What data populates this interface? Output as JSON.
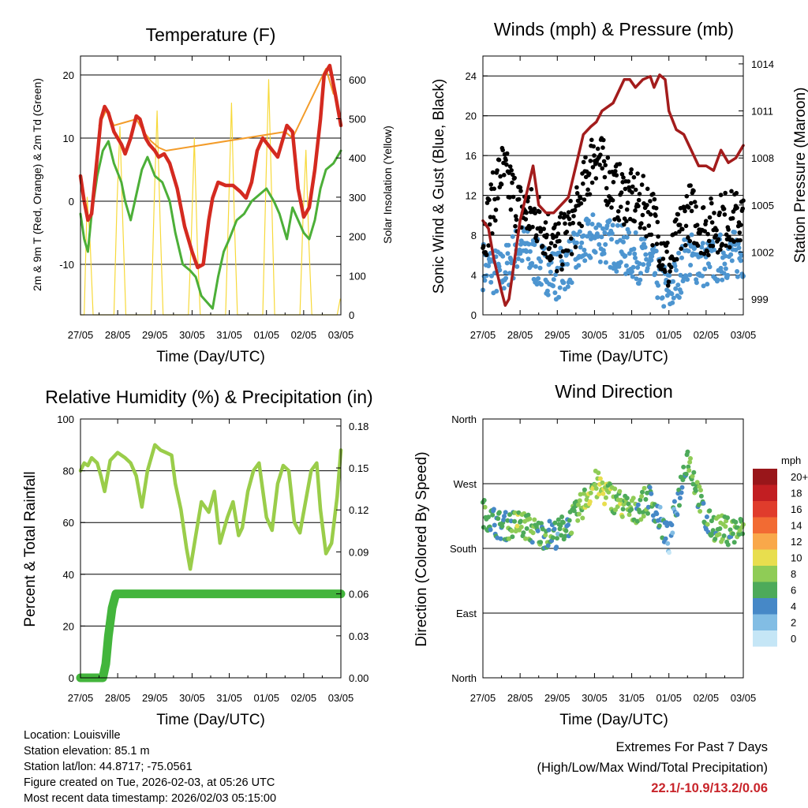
{
  "colors": {
    "temp_red": "#d42a20",
    "temp_orange": "#f39c2a",
    "dewpoint": "#4caf38",
    "insolation": "#f7d93a",
    "gust": "#000000",
    "wind": "#4d95d0",
    "pressure": "#a31c1c",
    "rh": "#9acd4a",
    "rain": "#43b53c",
    "extremes": "#c8242a"
  },
  "footer": {
    "location": "Location: Louisville",
    "elevation": "Station elevation: 85.1 m",
    "latlon": "Station lat/lon: 44.8717; -75.0561",
    "created": "Figure created on Tue, 2026-02-03, at 05:26 UTC",
    "timestamp": "Most recent data timestamp: 2026/02/03 05:15:00"
  },
  "extremes": {
    "title": "Extremes For Past 7 Days",
    "subtitle": "(High/Low/Max Wind/Total Precipitation)",
    "values": "22.1/-10.9/13.2/0.06"
  },
  "chart_data": [
    {
      "id": "temperature",
      "type": "line",
      "title": "Temperature (F)",
      "xlabel": "Time (Day/UTC)",
      "ylabel": "2m & 9m T (Red, Orange) & 2m Td (Green)",
      "ylabel_right": "Solar Insolation (Yellow)",
      "x_ticks": [
        "27/05",
        "28/05",
        "29/05",
        "30/05",
        "31/05",
        "01/05",
        "02/05",
        "03/05"
      ],
      "xlim": [
        0,
        7
      ],
      "ylim": [
        -18,
        23
      ],
      "yticks": [
        -10,
        0,
        10,
        20
      ],
      "ylim_right": [
        0,
        660
      ],
      "yticks_right": [
        0,
        100,
        200,
        300,
        400,
        500,
        600
      ],
      "series": [
        {
          "name": "2m T",
          "color_key": "temp_red",
          "width": 4.5,
          "x": [
            0,
            0.1,
            0.2,
            0.3,
            0.45,
            0.55,
            0.65,
            0.75,
            0.9,
            1.1,
            1.2,
            1.35,
            1.5,
            1.6,
            1.75,
            1.85,
            2.0,
            2.1,
            2.25,
            2.4,
            2.6,
            2.8,
            3.0,
            3.15,
            3.3,
            3.45,
            3.55,
            3.7,
            3.9,
            4.1,
            4.3,
            4.45,
            4.6,
            4.75,
            4.9,
            5.1,
            5.3,
            5.45,
            5.55,
            5.7,
            5.85,
            6.0,
            6.15,
            6.3,
            6.45,
            6.55,
            6.7,
            6.85,
            7.0
          ],
          "values": [
            4,
            0,
            -3,
            -2,
            7,
            13,
            15,
            14,
            11,
            9,
            7.5,
            10,
            13.5,
            13,
            10,
            9,
            8,
            7,
            7.5,
            6,
            2,
            -4,
            -8,
            -10.5,
            -10,
            -3,
            0.5,
            3,
            2.5,
            2.5,
            1.5,
            0.5,
            3,
            8,
            10,
            8.5,
            7,
            10,
            12,
            11,
            2,
            -2.5,
            -1,
            5,
            13,
            20,
            21.5,
            17,
            12
          ]
        },
        {
          "name": "9m T",
          "color_key": "temp_orange",
          "width": 2,
          "x": [
            0.5,
            0.7,
            0.9,
            1.5,
            1.7,
            1.9,
            2.1,
            2.3,
            5.5,
            5.7,
            6.6,
            6.8
          ],
          "values": [
            12,
            14.5,
            12,
            13,
            11,
            9.5,
            8.5,
            8,
            11,
            10,
            21,
            17
          ]
        },
        {
          "name": "2m Td",
          "color_key": "dewpoint",
          "width": 3,
          "x": [
            0,
            0.1,
            0.2,
            0.3,
            0.45,
            0.6,
            0.75,
            0.9,
            1.1,
            1.2,
            1.35,
            1.5,
            1.65,
            1.8,
            2.0,
            2.2,
            2.4,
            2.55,
            2.75,
            2.95,
            3.1,
            3.25,
            3.4,
            3.55,
            3.7,
            3.85,
            4.0,
            4.2,
            4.4,
            4.6,
            4.8,
            5.0,
            5.2,
            5.35,
            5.45,
            5.55,
            5.7,
            5.85,
            6.0,
            6.15,
            6.3,
            6.45,
            6.6,
            6.8,
            7.0
          ],
          "values": [
            -2,
            -6,
            -8,
            -2,
            4,
            8,
            9.5,
            6,
            3,
            0,
            -3,
            1,
            5,
            7,
            4,
            3,
            0,
            -5,
            -10,
            -11,
            -12,
            -15,
            -16,
            -17,
            -12,
            -8,
            -6,
            -3,
            -2,
            0,
            1,
            2,
            0,
            -2,
            -4,
            -6,
            -1,
            -3,
            -5,
            -6,
            -3,
            2,
            5,
            6,
            8
          ]
        },
        {
          "name": "Solar Insolation",
          "color_key": "insolation",
          "width": 1.2,
          "axis": "right",
          "x": [
            0,
            0.05,
            0.1,
            0.18,
            0.26,
            0.34,
            0.9,
            0.98,
            1.06,
            1.14,
            1.22,
            1.9,
            1.98,
            2.06,
            2.14,
            2.22,
            2.9,
            2.98,
            3.06,
            3.14,
            3.22,
            3.9,
            3.98,
            4.06,
            4.14,
            4.22,
            4.9,
            4.98,
            5.06,
            5.14,
            5.22,
            5.9,
            5.98,
            6.06,
            6.14,
            6.22,
            6.9,
            6.98
          ],
          "values": [
            0,
            0,
            0,
            300,
            180,
            0,
            0,
            280,
            480,
            230,
            0,
            0,
            280,
            520,
            240,
            0,
            0,
            200,
            450,
            180,
            0,
            0,
            260,
            540,
            230,
            0,
            0,
            320,
            600,
            300,
            0,
            0,
            240,
            420,
            180,
            0,
            0,
            40
          ]
        }
      ]
    },
    {
      "id": "winds",
      "type": "scatter",
      "title": "Winds (mph) & Pressure (mb)",
      "xlabel": "Time (Day/UTC)",
      "ylabel": "Sonic Wind & Gust (Blue, Black)",
      "ylabel_right": "Station Pressure (Maroon)",
      "x_ticks": [
        "27/05",
        "28/05",
        "29/05",
        "30/05",
        "31/05",
        "01/05",
        "02/05",
        "03/05"
      ],
      "xlim": [
        0,
        7
      ],
      "ylim": [
        0,
        26
      ],
      "yticks": [
        0,
        4,
        8,
        12,
        16,
        20,
        24
      ],
      "ylim_right": [
        998,
        1014.5
      ],
      "yticks_right": [
        999,
        1002,
        1005,
        1008,
        1011,
        1014
      ],
      "series": [
        {
          "name": "Sonic Wind",
          "color_key": "wind",
          "x": [
            0,
            0.5,
            1.0,
            1.5,
            2.0,
            2.5,
            3.0,
            3.5,
            4.0,
            4.5,
            5.0,
            5.5,
            6.0,
            6.5,
            7.0
          ],
          "values": [
            5,
            4,
            7,
            5,
            4,
            6,
            8,
            7,
            6,
            5,
            2,
            6,
            5,
            6,
            6
          ]
        },
        {
          "name": "Gust",
          "color_key": "gust",
          "x": [
            0,
            0.5,
            1.0,
            1.5,
            2.0,
            2.5,
            3.0,
            3.5,
            4.0,
            4.5,
            5.0,
            5.5,
            6.0,
            6.5,
            7.0
          ],
          "values": [
            7,
            14,
            10,
            9,
            6,
            9,
            16,
            12,
            11,
            10,
            4,
            10,
            8,
            9,
            9
          ]
        },
        {
          "name": "Station Pressure",
          "color_key": "pressure",
          "axis": "right",
          "x": [
            0,
            0.15,
            0.3,
            0.5,
            0.6,
            0.7,
            0.85,
            1.0,
            1.2,
            1.35,
            1.5,
            1.7,
            1.9,
            2.1,
            2.3,
            2.5,
            2.7,
            2.9,
            3.05,
            3.2,
            3.5,
            3.7,
            3.8,
            3.95,
            4.1,
            4.3,
            4.5,
            4.6,
            4.75,
            4.9,
            5.0,
            5.2,
            5.4,
            5.6,
            5.8,
            6.0,
            6.2,
            6.4,
            6.6,
            6.8,
            7.0
          ],
          "values": [
            1004,
            1003.5,
            1001.5,
            999.5,
            998.6,
            999,
            1001.5,
            1004,
            1006,
            1007.5,
            1005,
            1004.5,
            1004.5,
            1005,
            1005.5,
            1007.5,
            1009.5,
            1010,
            1010.3,
            1011,
            1011.5,
            1012.5,
            1013,
            1013,
            1012.5,
            1013,
            1013.2,
            1012.5,
            1013.3,
            1013,
            1011,
            1009.8,
            1009.5,
            1008.5,
            1007.5,
            1007.5,
            1007.2,
            1008.5,
            1007.7,
            1008,
            1008.8
          ]
        }
      ]
    },
    {
      "id": "humidity",
      "type": "line",
      "title": "Relative Humidity (%) & Precipitation (in)",
      "xlabel": "Time (Day/UTC)",
      "ylabel": "Percent & Total Rainfall",
      "x_ticks": [
        "27/05",
        "28/05",
        "29/05",
        "30/05",
        "31/05",
        "01/05",
        "02/05",
        "03/05"
      ],
      "xlim": [
        0,
        7
      ],
      "ylim": [
        0,
        100
      ],
      "yticks": [
        0,
        20,
        40,
        60,
        80,
        100
      ],
      "ylim_right": [
        0,
        0.185
      ],
      "yticks_right": [
        "0.00",
        "0.03",
        "0.06",
        "0.09",
        "0.12",
        "0.15",
        "0.18"
      ],
      "series": [
        {
          "name": "Relative Humidity",
          "color_key": "rh",
          "width": 4.5,
          "x": [
            0,
            0.1,
            0.2,
            0.3,
            0.45,
            0.55,
            0.65,
            0.8,
            1.0,
            1.2,
            1.35,
            1.5,
            1.65,
            1.8,
            2.0,
            2.15,
            2.3,
            2.45,
            2.55,
            2.7,
            2.85,
            2.95,
            3.1,
            3.25,
            3.45,
            3.6,
            3.75,
            3.95,
            4.1,
            4.25,
            4.35,
            4.5,
            4.65,
            4.8,
            5.0,
            5.15,
            5.3,
            5.45,
            5.6,
            5.75,
            5.9,
            6.05,
            6.2,
            6.35,
            6.45,
            6.6,
            6.75,
            6.9,
            7.0
          ],
          "values": [
            80,
            83,
            82,
            85,
            83,
            78,
            72,
            84,
            87,
            85,
            83,
            78,
            66,
            80,
            90,
            88,
            87,
            86,
            75,
            65,
            50,
            42,
            55,
            68,
            64,
            72,
            52,
            62,
            68,
            55,
            58,
            72,
            80,
            83,
            62,
            57,
            75,
            82,
            80,
            60,
            56,
            68,
            80,
            83,
            65,
            48,
            52,
            70,
            88
          ]
        },
        {
          "name": "Total Precipitation",
          "color_key": "rain",
          "width": 11,
          "axis": "right",
          "x": [
            0,
            0.6,
            0.68,
            0.75,
            0.85,
            0.95,
            7.0
          ],
          "values": [
            0,
            0,
            0.01,
            0.03,
            0.05,
            0.06,
            0.06
          ]
        }
      ]
    },
    {
      "id": "direction",
      "type": "scatter",
      "title": "Wind Direction",
      "xlabel": "Time (Day/UTC)",
      "ylabel": "Direction (Colored By Speed)",
      "x_ticks": [
        "27/05",
        "28/05",
        "29/05",
        "30/05",
        "31/05",
        "01/05",
        "02/05",
        "03/05"
      ],
      "xlim": [
        0,
        7
      ],
      "ylim": [
        0,
        360
      ],
      "y_tick_labels": [
        "North",
        "East",
        "South",
        "West",
        "North"
      ],
      "legend": {
        "unit": "mph",
        "labels": [
          "20+",
          "18",
          "16",
          "14",
          "12",
          "10",
          "8",
          "6",
          "4",
          "2",
          "0"
        ],
        "colors": [
          "#99161a",
          "#c21e22",
          "#e03c2c",
          "#f26b33",
          "#f9a84a",
          "#e8de4e",
          "#8fcc56",
          "#4daa5a",
          "#4688c7",
          "#82bde4",
          "#c5e6f6"
        ]
      },
      "series": [
        {
          "name": "Direction",
          "x": [
            0,
            0.5,
            1.0,
            1.5,
            2.0,
            2.5,
            3.0,
            3.5,
            4.0,
            4.5,
            5.0,
            5.5,
            6.0,
            6.5,
            7.0
          ],
          "values": [
            230,
            210,
            215,
            200,
            200,
            225,
            270,
            250,
            230,
            250,
            190,
            310,
            215,
            205,
            205
          ]
        }
      ]
    }
  ]
}
